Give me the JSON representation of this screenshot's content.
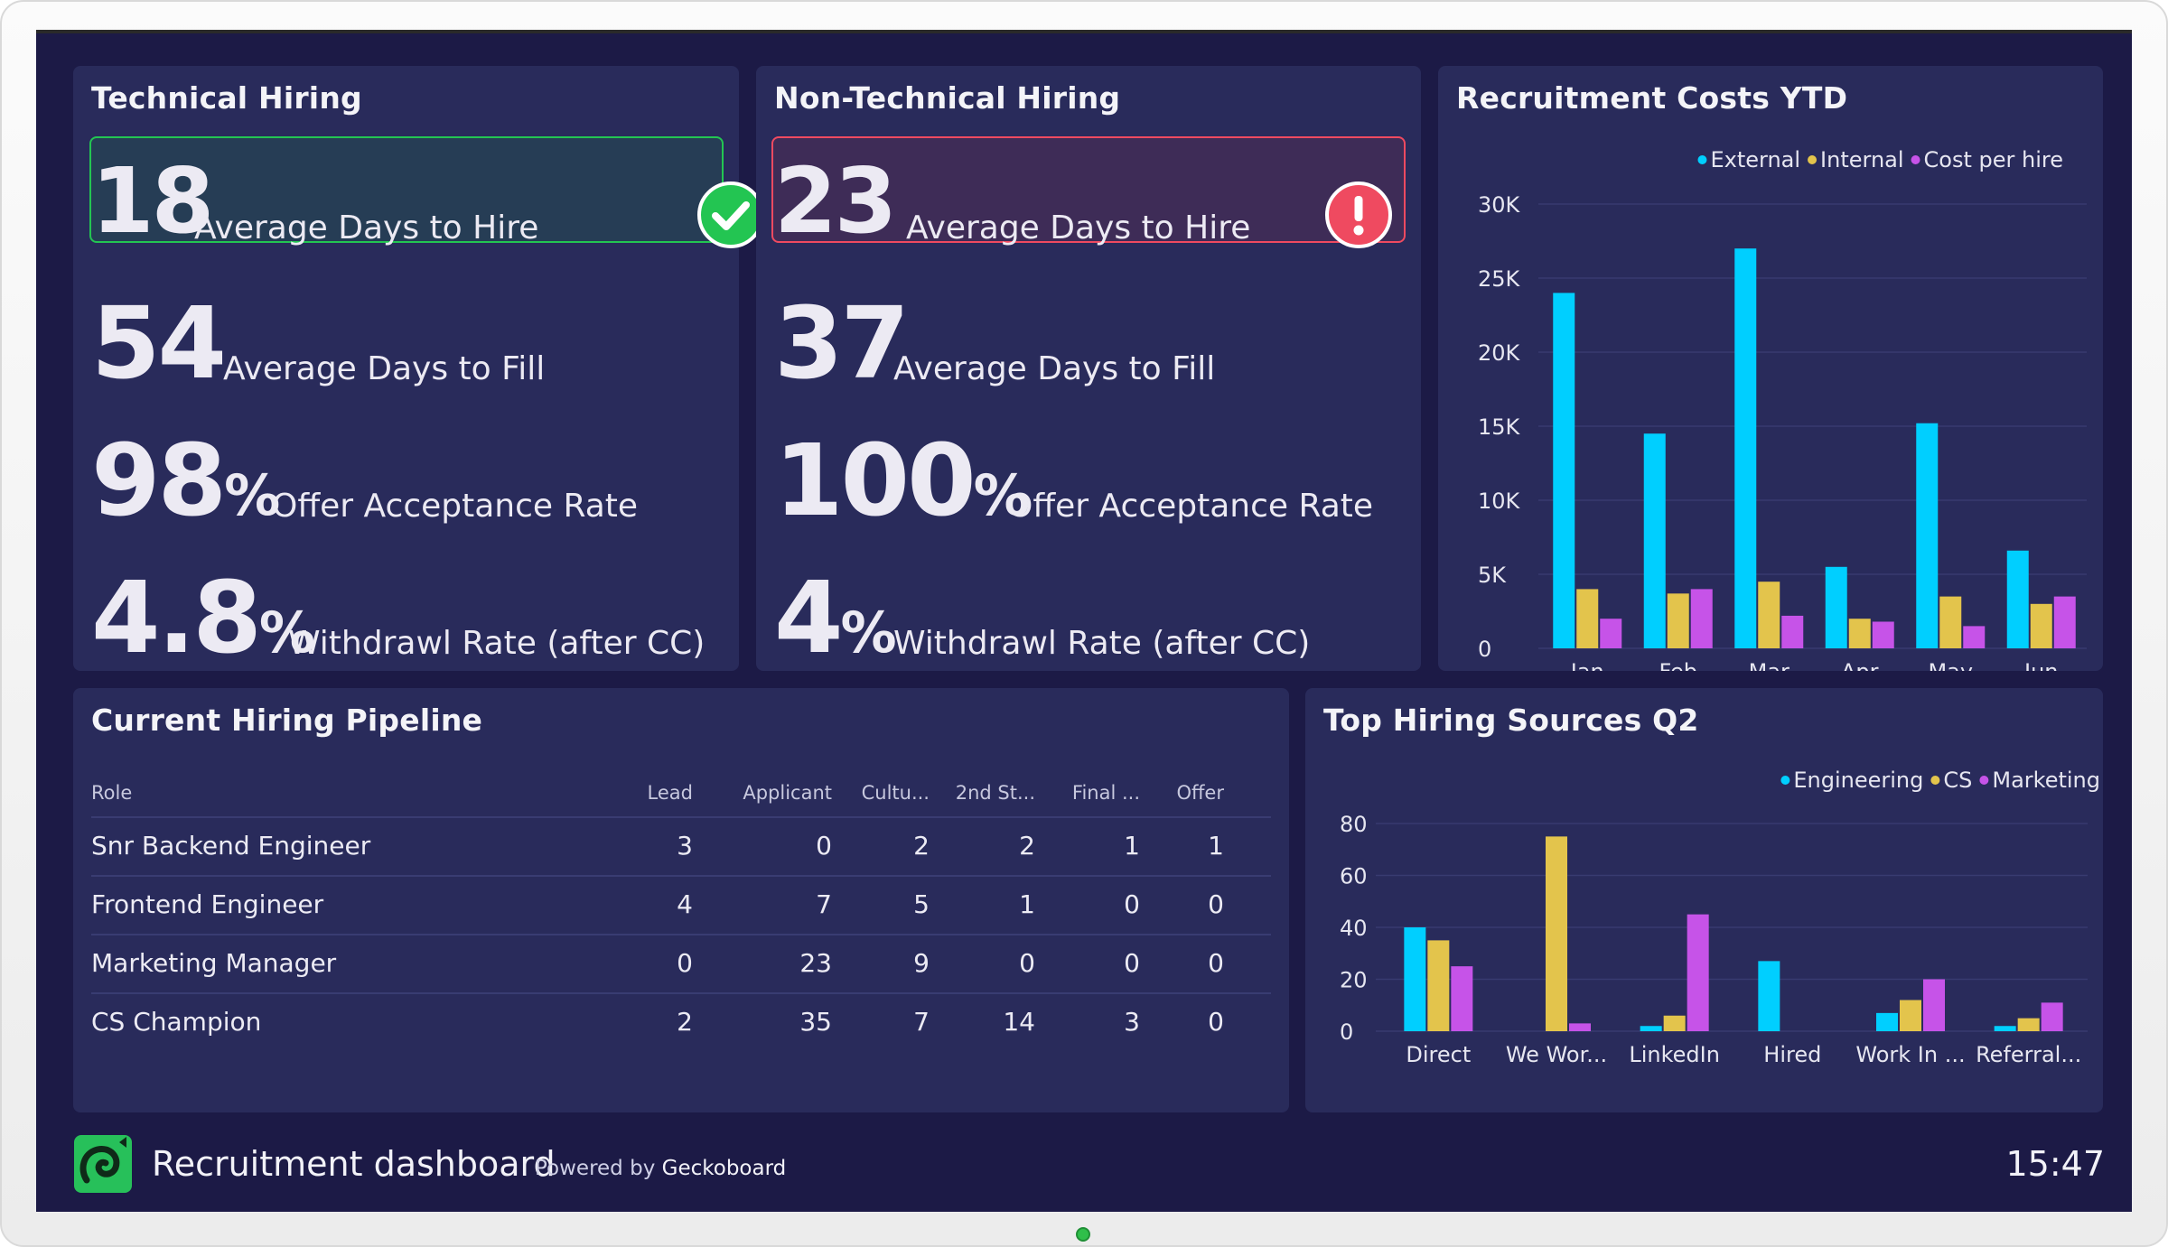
{
  "colors": {
    "external": "#00cfff",
    "internal": "#e3c44c",
    "cost_per_hire": "#c653e8",
    "good": "#23c552",
    "bad": "#ef4a60"
  },
  "technical": {
    "title": "Technical Hiring",
    "days_to_hire": {
      "value": "18",
      "label": "Average Days to Hire",
      "status": "check-icon"
    },
    "days_to_fill": {
      "value": "54",
      "label": "Average Days to Fill"
    },
    "offer_acceptance": {
      "value": "98",
      "unit": "%",
      "label": "Offer Acceptance Rate"
    },
    "withdrawal": {
      "value": "4.8",
      "unit": "%",
      "label": "Withdrawl Rate (after CC)"
    }
  },
  "non_technical": {
    "title": "Non-Technical Hiring",
    "days_to_hire": {
      "value": "23",
      "label": "Average Days to Hire",
      "status": "alert-icon"
    },
    "days_to_fill": {
      "value": "37",
      "label": "Average Days to Fill"
    },
    "offer_acceptance": {
      "value": "100",
      "unit": "%",
      "label": "Offer Acceptance Rate"
    },
    "withdrawal": {
      "value": "4",
      "unit": "%",
      "label": "Withdrawl Rate (after CC)"
    }
  },
  "pipeline": {
    "title": "Current Hiring Pipeline",
    "columns": [
      "Role",
      "Lead",
      "Applicant",
      "Cultu...",
      "2nd St...",
      "Final ...",
      "Offer"
    ],
    "rows": [
      [
        "Snr Backend Engineer",
        "3",
        "0",
        "2",
        "2",
        "1",
        "1"
      ],
      [
        "Frontend Engineer",
        "4",
        "7",
        "5",
        "1",
        "0",
        "0"
      ],
      [
        "Marketing Manager",
        "0",
        "23",
        "9",
        "0",
        "0",
        "0"
      ],
      [
        "CS Champion",
        "2",
        "35",
        "7",
        "14",
        "3",
        "0"
      ]
    ]
  },
  "footer": {
    "title": "Recruitment dashboard",
    "powered_prefix": "Powered by",
    "powered_brand": "Geckoboard",
    "clock": "15:47"
  },
  "chart_data": [
    {
      "type": "bar",
      "title": "Recruitment Costs YTD",
      "categories": [
        "Jan",
        "Feb",
        "Mar",
        "Apr",
        "May",
        "Jun"
      ],
      "series": [
        {
          "name": "External",
          "values": [
            24000,
            14500,
            27000,
            5500,
            15200,
            6600
          ]
        },
        {
          "name": "Internal",
          "values": [
            4000,
            3700,
            4500,
            2000,
            3500,
            3000
          ]
        },
        {
          "name": "Cost per hire",
          "values": [
            2000,
            4000,
            2200,
            1800,
            1500,
            3500
          ]
        }
      ],
      "yticks": [
        "0",
        "5K",
        "10K",
        "15K",
        "20K",
        "25K",
        "30K"
      ],
      "ylim": [
        0,
        30000
      ],
      "legend": "top-right",
      "grid": true
    },
    {
      "type": "bar",
      "title": "Top Hiring Sources Q2",
      "categories": [
        "Direct",
        "We Wor...",
        "LinkedIn",
        "Hired",
        "Work In ...",
        "Referral..."
      ],
      "series": [
        {
          "name": "Engineering",
          "values": [
            40,
            0,
            2,
            27,
            7,
            2
          ]
        },
        {
          "name": "CS",
          "values": [
            35,
            75,
            6,
            0,
            12,
            5
          ]
        },
        {
          "name": "Marketing",
          "values": [
            25,
            3,
            45,
            0,
            20,
            11
          ]
        }
      ],
      "yticks": [
        "0",
        "20",
        "40",
        "60",
        "80"
      ],
      "ylim": [
        0,
        80
      ],
      "legend": "top-right",
      "grid": true
    }
  ]
}
